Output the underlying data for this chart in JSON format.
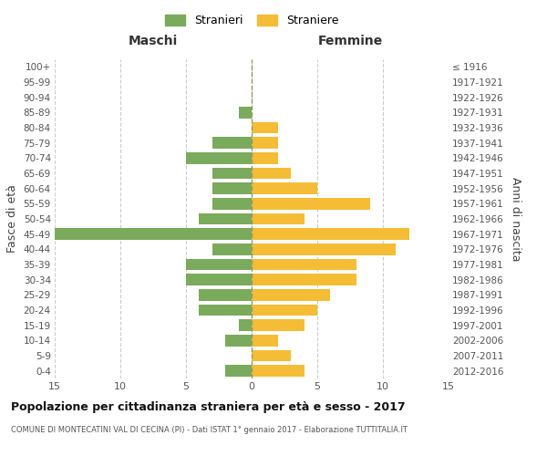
{
  "age_groups": [
    "0-4",
    "5-9",
    "10-14",
    "15-19",
    "20-24",
    "25-29",
    "30-34",
    "35-39",
    "40-44",
    "45-49",
    "50-54",
    "55-59",
    "60-64",
    "65-69",
    "70-74",
    "75-79",
    "80-84",
    "85-89",
    "90-94",
    "95-99",
    "100+"
  ],
  "birth_years": [
    "2012-2016",
    "2007-2011",
    "2002-2006",
    "1997-2001",
    "1992-1996",
    "1987-1991",
    "1982-1986",
    "1977-1981",
    "1972-1976",
    "1967-1971",
    "1962-1966",
    "1957-1961",
    "1952-1956",
    "1947-1951",
    "1942-1946",
    "1937-1941",
    "1932-1936",
    "1927-1931",
    "1922-1926",
    "1917-1921",
    "≤ 1916"
  ],
  "males": [
    2,
    0,
    2,
    1,
    4,
    4,
    5,
    5,
    3,
    15,
    4,
    3,
    3,
    3,
    5,
    3,
    0,
    1,
    0,
    0,
    0
  ],
  "females": [
    4,
    3,
    2,
    4,
    5,
    6,
    8,
    8,
    11,
    12,
    4,
    9,
    5,
    3,
    2,
    2,
    2,
    0,
    0,
    0,
    0
  ],
  "male_color": "#7aaa5c",
  "female_color": "#f5bc35",
  "background_color": "#ffffff",
  "grid_color": "#cccccc",
  "center_line_color": "#999966",
  "xlim": 15,
  "title": "Popolazione per cittadinanza straniera per età e sesso - 2017",
  "subtitle": "COMUNE DI MONTECATINI VAL DI CECINA (PI) - Dati ISTAT 1° gennaio 2017 - Elaborazione TUTTITALIA.IT",
  "xlabel_left": "Maschi",
  "xlabel_right": "Femmine",
  "ylabel_left": "Fasce di età",
  "ylabel_right": "Anni di nascita",
  "legend_male": "Stranieri",
  "legend_female": "Straniere"
}
